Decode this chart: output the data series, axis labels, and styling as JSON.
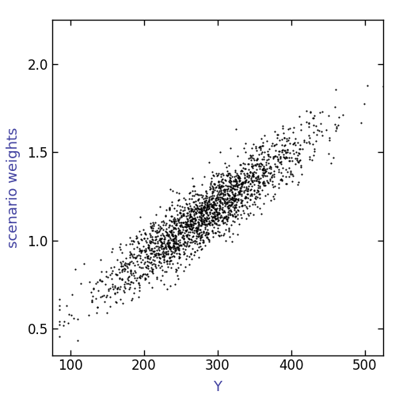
{
  "title": "",
  "xlabel": "Y",
  "ylabel": "scenario weights",
  "xlabel_color": "#4040a0",
  "ylabel_color": "#4040a0",
  "tick_color": "#000000",
  "tick_label_color": "#000000",
  "xlim": [
    75,
    525
  ],
  "ylim": [
    0.35,
    2.25
  ],
  "xticks": [
    100,
    200,
    300,
    400,
    500
  ],
  "yticks": [
    0.5,
    1.0,
    1.5,
    2.0
  ],
  "dot_color": "#000000",
  "dot_size": 2.5,
  "dot_alpha": 1.0,
  "n_points": 2000,
  "seed": 42,
  "x_mean": 280,
  "x_std": 70,
  "slope": 0.003,
  "intercept": 0.3,
  "noise_std": 0.09,
  "background_color": "#ffffff",
  "spine_color": "#000000",
  "figsize": [
    5.04,
    5.04
  ],
  "dpi": 100
}
